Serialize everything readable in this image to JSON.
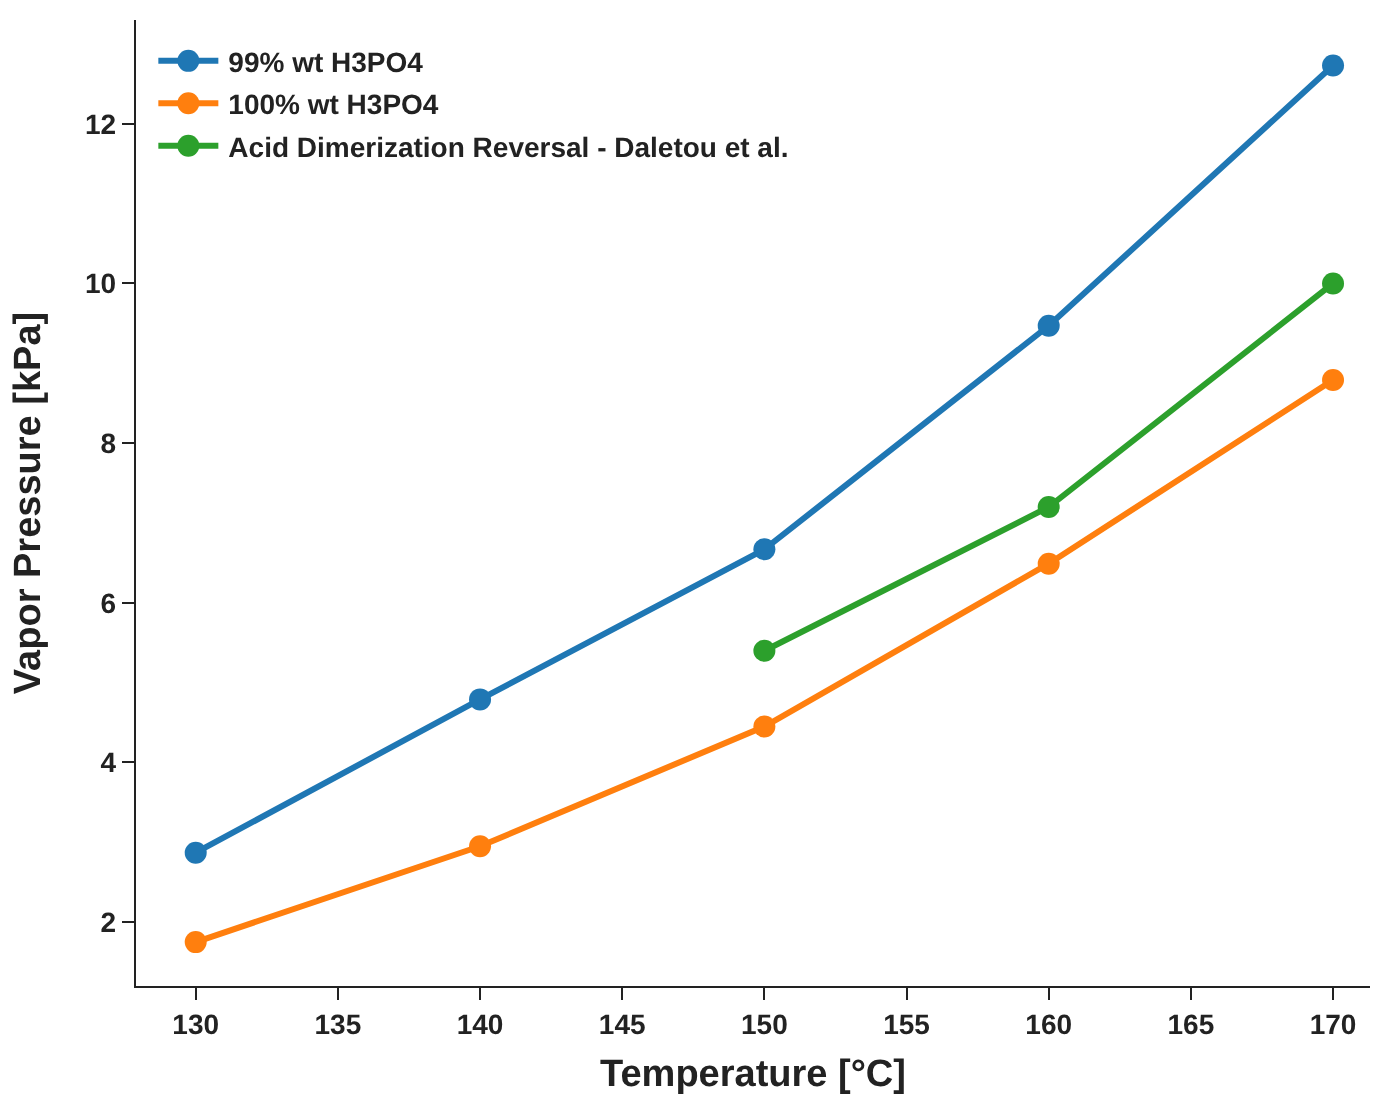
{
  "chart_data": {
    "type": "line",
    "xlabel": "Temperature [°C]",
    "ylabel": "Vapor Pressure [kPa]",
    "x": [
      130,
      140,
      150,
      160,
      170
    ],
    "series": [
      {
        "name": "99% wt H3PO4",
        "color": "#1f77b4",
        "values": [
          2.87,
          4.79,
          6.67,
          9.47,
          12.73
        ]
      },
      {
        "name": "100% wt H3PO4",
        "color": "#ff7f0e",
        "values": [
          1.75,
          2.95,
          4.45,
          6.49,
          8.79
        ]
      },
      {
        "name": "Acid Dimerization Reversal - Daletou et al.",
        "color": "#2ca02c",
        "x": [
          150,
          160,
          170
        ],
        "values": [
          5.4,
          7.2,
          10
        ]
      }
    ],
    "xlim": [
      127.9,
      171.3
    ],
    "ylim": [
      1.2,
      13.3
    ],
    "xticks": [
      130,
      135,
      140,
      145,
      150,
      155,
      160,
      165,
      170
    ],
    "yticks": [
      2,
      4,
      6,
      8,
      10,
      12
    ],
    "grid": false,
    "legend": "top left",
    "marker": "circle",
    "line_style": "solid"
  }
}
